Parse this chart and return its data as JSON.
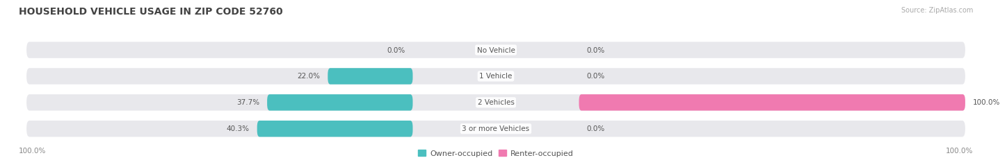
{
  "title": "HOUSEHOLD VEHICLE USAGE IN ZIP CODE 52760",
  "source": "Source: ZipAtlas.com",
  "categories": [
    "No Vehicle",
    "1 Vehicle",
    "2 Vehicles",
    "3 or more Vehicles"
  ],
  "owner_values": [
    0.0,
    22.0,
    37.7,
    40.3
  ],
  "renter_values": [
    0.0,
    0.0,
    100.0,
    0.0
  ],
  "owner_color": "#4bbfbf",
  "renter_color": "#f07ab0",
  "bar_bg_color": "#e8e8ec",
  "bar_bg_color2": "#f2f2f5",
  "axis_label_left": "100.0%",
  "axis_label_right": "100.0%",
  "max_val": 100.0,
  "figsize": [
    14.06,
    2.34
  ],
  "dpi": 100,
  "title_color": "#444444",
  "source_color": "#aaaaaa",
  "label_color": "#555555",
  "val_color": "#555555"
}
